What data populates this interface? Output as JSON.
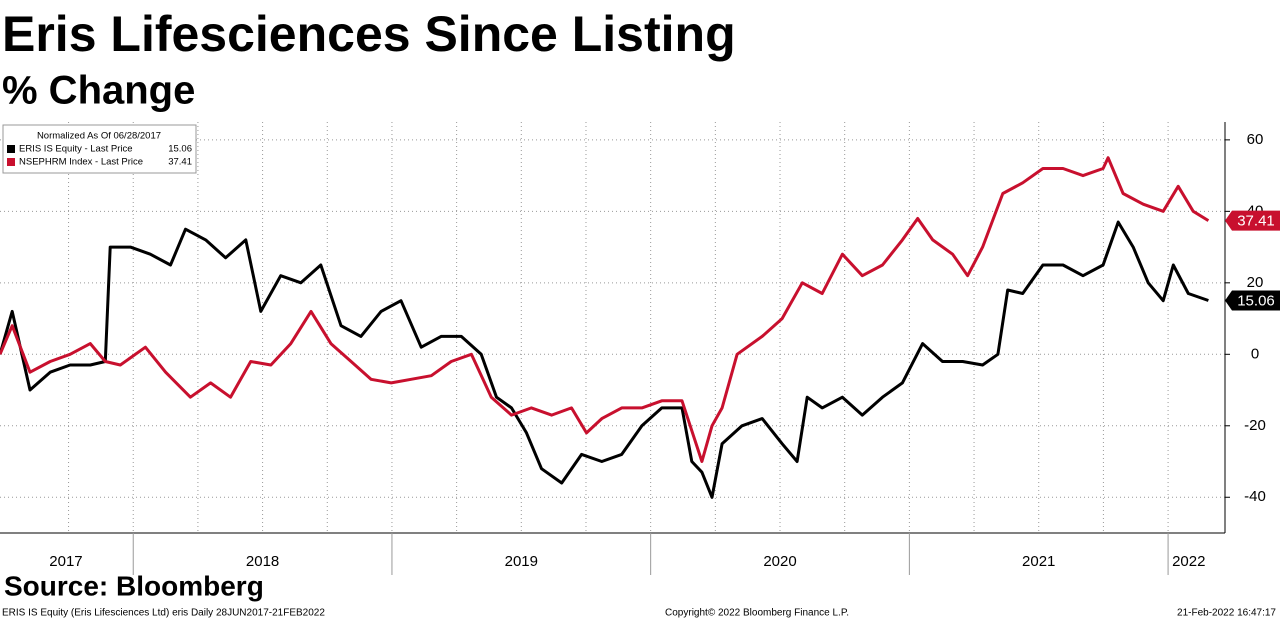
{
  "chart_data": {
    "type": "line",
    "title": "Eris Lifesciences Since Listing",
    "subtitle": "% Change",
    "legend_title": "Normalized As Of 06/28/2017",
    "source": "Source: Bloomberg",
    "footer_left": "ERIS IS Equity (Eris Lifesciences Ltd) eris  Daily 28JUN2017-21FEB2022",
    "footer_center": "Copyright© 2022 Bloomberg Finance L.P.",
    "footer_right": "21-Feb-2022 16:47:17",
    "legend": "upper left",
    "grid": true,
    "xlim": [
      2017.485,
      2022.22
    ],
    "ylim": [
      -50,
      65
    ],
    "yticks": [
      -40,
      -20,
      0,
      20,
      40,
      60
    ],
    "xticks": [
      {
        "value": 2017.74,
        "label": "2017"
      },
      {
        "value": 2018.5,
        "label": "2018"
      },
      {
        "value": 2019.5,
        "label": "2019"
      },
      {
        "value": 2020.5,
        "label": "2020"
      },
      {
        "value": 2021.5,
        "label": "2021"
      },
      {
        "value": 2022.08,
        "label": "2022"
      }
    ],
    "xgrid": [
      2017.75,
      2018,
      2018.25,
      2018.5,
      2018.75,
      2019,
      2019.25,
      2019.5,
      2019.75,
      2020,
      2020.25,
      2020.5,
      2020.75,
      2021,
      2021.25,
      2021.5,
      2021.75,
      2022
    ],
    "series": [
      {
        "name": "ERIS IS Equity - Last Price",
        "color": "#000000",
        "x": [
          2017.485,
          2017.532,
          2017.601,
          2017.679,
          2017.756,
          2017.834,
          2017.892,
          2017.911,
          2017.989,
          2018.066,
          2018.144,
          2018.202,
          2018.28,
          2018.357,
          2018.435,
          2018.493,
          2018.57,
          2018.648,
          2018.725,
          2018.803,
          2018.88,
          2018.958,
          2019.035,
          2019.113,
          2019.19,
          2019.268,
          2019.345,
          2019.404,
          2019.462,
          2019.52,
          2019.578,
          2019.656,
          2019.733,
          2019.811,
          2019.888,
          2019.966,
          2020.043,
          2020.121,
          2020.159,
          2020.198,
          2020.237,
          2020.276,
          2020.353,
          2020.431,
          2020.508,
          2020.566,
          2020.605,
          2020.663,
          2020.741,
          2020.818,
          2020.896,
          2020.973,
          2021.051,
          2021.128,
          2021.206,
          2021.283,
          2021.342,
          2021.38,
          2021.438,
          2021.516,
          2021.594,
          2021.671,
          2021.749,
          2021.807,
          2021.865,
          2021.923,
          2021.981,
          2022.02,
          2022.078,
          2022.156
        ],
        "values": [
          0,
          12,
          -10,
          -5,
          -3,
          -3,
          -2,
          30,
          30,
          28,
          25,
          35,
          32,
          27,
          32,
          12,
          22,
          20,
          25,
          8,
          5,
          12,
          15,
          2,
          5,
          5,
          0,
          -12,
          -15,
          -22,
          -32,
          -36,
          -28,
          -30,
          -28,
          -20,
          -15,
          -15,
          -30,
          -33,
          -40,
          -25,
          -20,
          -18,
          -25,
          -30,
          -12,
          -15,
          -12,
          -17,
          -12,
          -8,
          3,
          -2,
          -2,
          -3,
          0,
          18,
          17,
          25,
          25,
          22,
          25,
          37,
          30,
          20,
          15,
          25,
          17,
          15.06
        ]
      },
      {
        "name": "NSEPHRM Index - Last Price",
        "color": "#c8102e",
        "x": [
          2017.485,
          2017.532,
          2017.601,
          2017.679,
          2017.756,
          2017.834,
          2017.892,
          2017.95,
          2018.047,
          2018.125,
          2018.221,
          2018.299,
          2018.376,
          2018.454,
          2018.532,
          2018.609,
          2018.687,
          2018.764,
          2018.842,
          2018.919,
          2018.997,
          2019.074,
          2019.152,
          2019.229,
          2019.307,
          2019.384,
          2019.462,
          2019.539,
          2019.617,
          2019.694,
          2019.752,
          2019.811,
          2019.888,
          2019.966,
          2020.043,
          2020.121,
          2020.198,
          2020.237,
          2020.276,
          2020.334,
          2020.431,
          2020.508,
          2020.586,
          2020.663,
          2020.741,
          2020.818,
          2020.896,
          2020.973,
          2021.032,
          2021.09,
          2021.167,
          2021.225,
          2021.283,
          2021.361,
          2021.438,
          2021.516,
          2021.594,
          2021.671,
          2021.749,
          2021.768,
          2021.826,
          2021.904,
          2021.981,
          2022.039,
          2022.097,
          2022.156
        ],
        "values": [
          0,
          8,
          -5,
          -2,
          0,
          3,
          -2,
          -3,
          2,
          -5,
          -12,
          -8,
          -12,
          -2,
          -3,
          3,
          12,
          3,
          -2,
          -7,
          -8,
          -7,
          -6,
          -2,
          0,
          -12,
          -17,
          -15,
          -17,
          -15,
          -22,
          -18,
          -15,
          -15,
          -13,
          -13,
          -30,
          -20,
          -15,
          0,
          5,
          10,
          20,
          17,
          28,
          22,
          25,
          32,
          38,
          32,
          28,
          22,
          30,
          45,
          48,
          52,
          52,
          50,
          52,
          55,
          45,
          42,
          40,
          47,
          40,
          37.41
        ]
      }
    ]
  }
}
